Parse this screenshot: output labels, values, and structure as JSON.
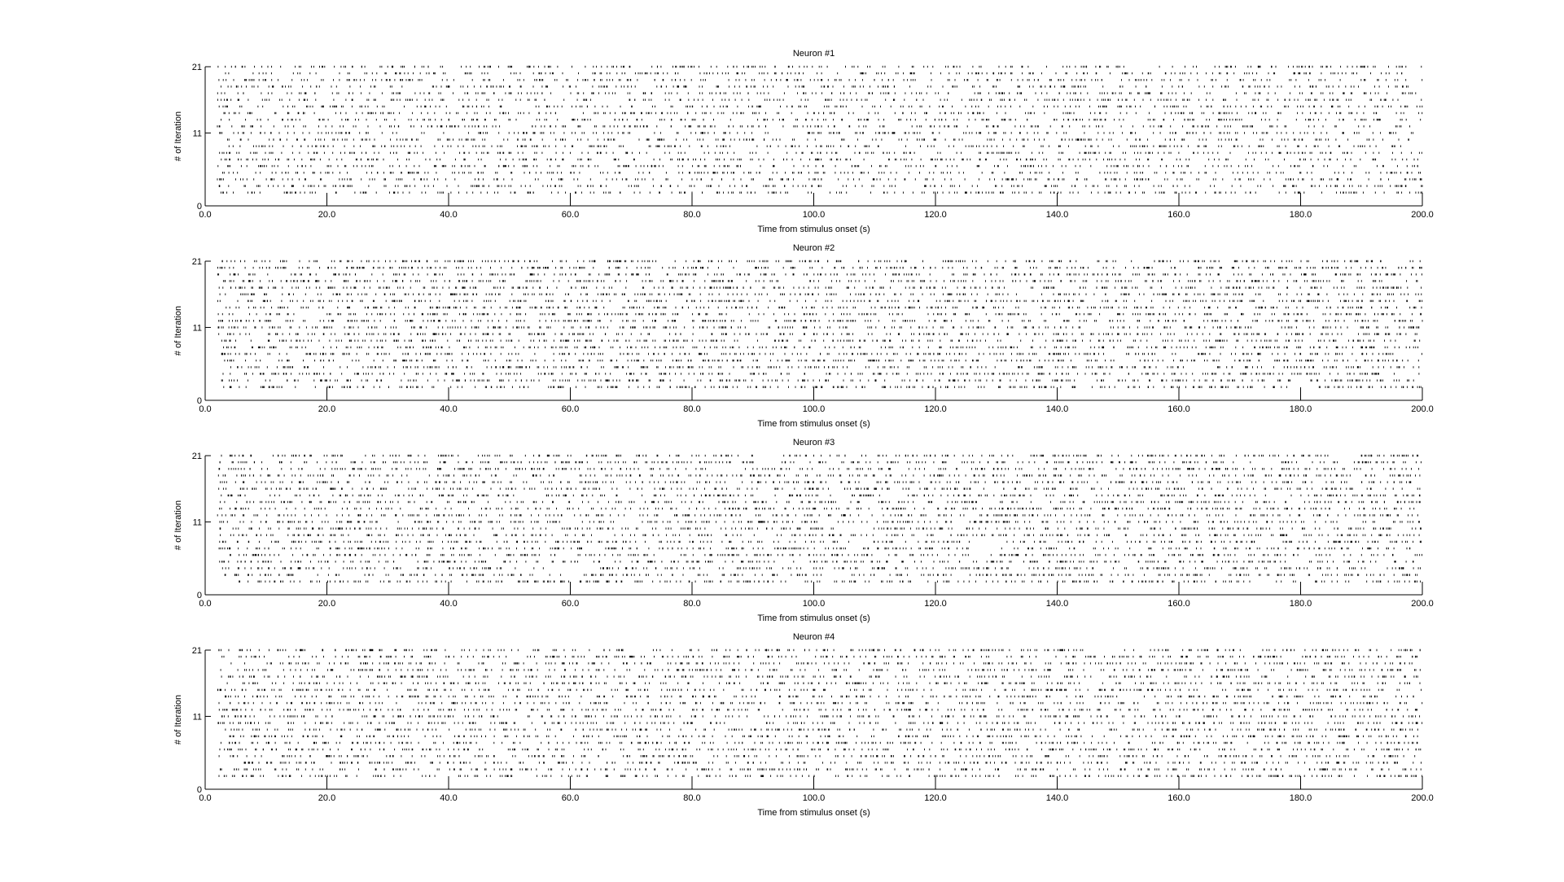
{
  "figure": {
    "background": "#ffffff",
    "foreground": "#000000"
  },
  "chart_data": [
    {
      "type": "scatter",
      "style": "raster",
      "title": "Neuron #1",
      "xlabel": "Time from stimulus onset (s)",
      "ylabel": "# of Iteration",
      "xlim": [
        0,
        200
      ],
      "ylim": [
        0,
        21
      ],
      "xticks": [
        "0.0",
        "20.0",
        "40.0",
        "60.0",
        "80.0",
        "100.0",
        "120.0",
        "140.0",
        "160.0",
        "180.0",
        "200.0"
      ],
      "yticks": [
        "0",
        "11",
        "21"
      ],
      "rows": [
        2,
        3,
        4,
        5,
        6,
        7,
        8,
        9,
        10,
        11,
        12,
        13,
        14,
        15,
        16,
        17,
        18,
        19,
        20,
        21
      ],
      "spikes_per_row": 240,
      "marker_color": "#000000",
      "grid": false
    },
    {
      "type": "scatter",
      "style": "raster",
      "title": "Neuron #2",
      "xlabel": "Time from stimulus onset (s)",
      "ylabel": "# of Iteration",
      "xlim": [
        0,
        200
      ],
      "ylim": [
        0,
        21
      ],
      "xticks": [
        "0.0",
        "20.0",
        "40.0",
        "60.0",
        "80.0",
        "100.0",
        "120.0",
        "140.0",
        "160.0",
        "180.0",
        "200.0"
      ],
      "yticks": [
        "0",
        "11",
        "21"
      ],
      "rows": [
        2,
        3,
        4,
        5,
        6,
        7,
        8,
        9,
        10,
        11,
        12,
        13,
        14,
        15,
        16,
        17,
        18,
        19,
        20,
        21
      ],
      "spikes_per_row": 300,
      "marker_color": "#000000",
      "grid": false
    },
    {
      "type": "scatter",
      "style": "raster",
      "title": "Neuron #3",
      "xlabel": "Time from stimulus onset (s)",
      "ylabel": "# of Iteration",
      "xlim": [
        0,
        200
      ],
      "ylim": [
        0,
        21
      ],
      "xticks": [
        "0.0",
        "20.0",
        "40.0",
        "60.0",
        "80.0",
        "100.0",
        "120.0",
        "140.0",
        "160.0",
        "180.0",
        "200.0"
      ],
      "yticks": [
        "0",
        "11",
        "21"
      ],
      "rows": [
        2,
        3,
        4,
        5,
        6,
        7,
        8,
        9,
        10,
        11,
        12,
        13,
        14,
        15,
        16,
        17,
        18,
        19,
        20,
        21
      ],
      "spikes_per_row": 290,
      "marker_color": "#000000",
      "grid": false
    },
    {
      "type": "scatter",
      "style": "raster",
      "title": "Neuron #4",
      "xlabel": "Time from stimulus onset (s)",
      "ylabel": "# of Iteration",
      "xlim": [
        0,
        200
      ],
      "ylim": [
        0,
        21
      ],
      "xticks": [
        "0.0",
        "20.0",
        "40.0",
        "60.0",
        "80.0",
        "100.0",
        "120.0",
        "140.0",
        "160.0",
        "180.0",
        "200.0"
      ],
      "yticks": [
        "0",
        "11",
        "21"
      ],
      "rows": [
        2,
        3,
        4,
        5,
        6,
        7,
        8,
        9,
        10,
        11,
        12,
        13,
        14,
        15,
        16,
        17,
        18,
        19,
        20,
        21
      ],
      "spikes_per_row": 280,
      "marker_color": "#000000",
      "grid": false
    }
  ]
}
